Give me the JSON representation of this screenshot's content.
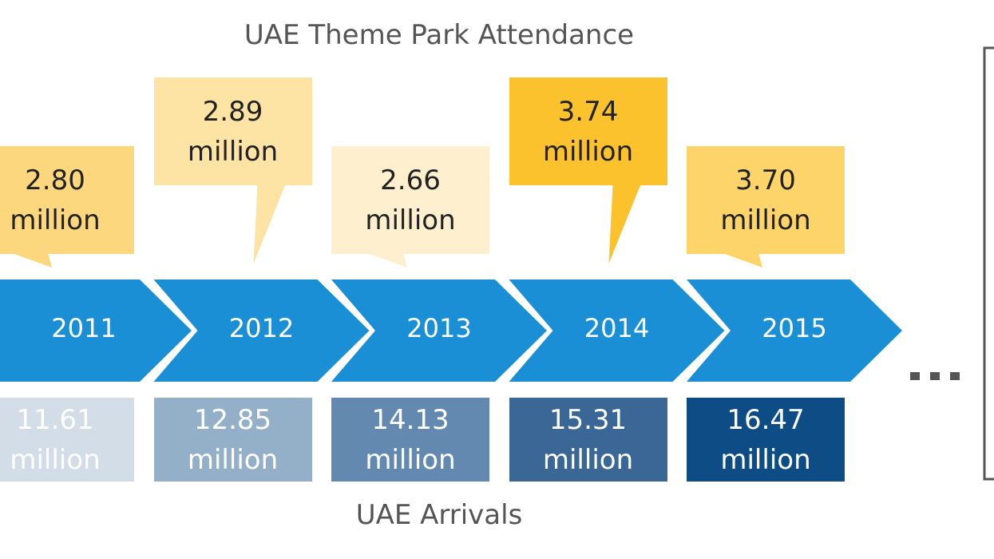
{
  "title": "UAE Theme Park Attendance",
  "bottom_label": "UAE Arrivals",
  "items": [
    {
      "year": "2011",
      "attendance": "2.80 million",
      "attendance_color": "#fcd77d",
      "arrivals": "11.61 million",
      "arrivals_color": "#d3dde8"
    },
    {
      "year": "2012",
      "attendance": "2.89 million",
      "attendance_color": "#fde3a4",
      "arrivals": "12.85 million",
      "arrivals_color": "#94afc8"
    },
    {
      "year": "2013",
      "attendance": "2.66 million",
      "attendance_color": "#fef0cf",
      "arrivals": "14.13 million",
      "arrivals_color": "#6389b0"
    },
    {
      "year": "2014",
      "attendance": "3.74 million",
      "attendance_color": "#fcc22d",
      "arrivals": "15.31 million",
      "arrivals_color": "#3a6795"
    },
    {
      "year": "2015",
      "attendance": "3.70 million",
      "attendance_color": "#fdd46a",
      "arrivals": "16.47 million",
      "arrivals_color": "#0d4c85"
    }
  ]
}
